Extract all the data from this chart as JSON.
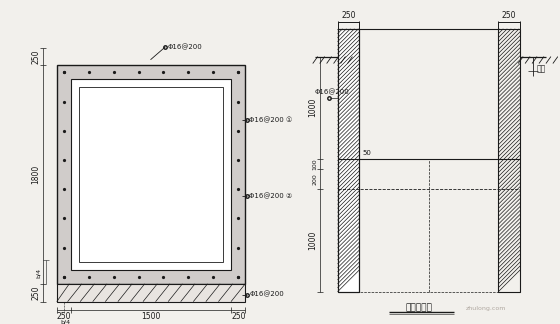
{
  "bg_color": "#f2f0ec",
  "line_color": "#1a1a1a",
  "title": "护壁配筋图",
  "label_slope": "坡面",
  "rebar": "Φ16@200",
  "dims_left": {
    "h1800": "1800",
    "t250_top": "250",
    "t250_bot": "250",
    "b4": "b/4"
  },
  "dims_bot": {
    "d250l": "250",
    "d1500": "1500",
    "d250r": "250",
    "b4": "b/4"
  },
  "dims_right": {
    "d250l": "250",
    "d250r": "250",
    "d1000t": "1000",
    "d100": "100",
    "d200": "200",
    "d1000b": "1000",
    "d50": "50"
  }
}
